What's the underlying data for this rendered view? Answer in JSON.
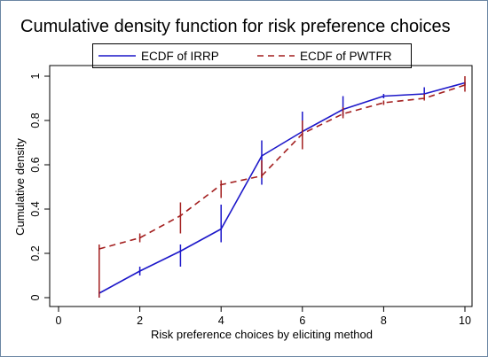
{
  "chart_data": {
    "type": "line",
    "title": "Cumulative density function for risk preference choices",
    "xlabel": "Risk preference choices by eliciting method",
    "ylabel": "Cumulative density",
    "xlim": [
      0,
      10
    ],
    "ylim": [
      0,
      1
    ],
    "xticks": [
      0,
      2,
      4,
      6,
      8,
      10
    ],
    "yticks": [
      0,
      0.2,
      0.4,
      0.6,
      0.8,
      1
    ],
    "ytick_labels": [
      "0",
      "0.2",
      "0.4",
      "0.6",
      "0.8",
      "1"
    ],
    "grid": false,
    "legend_position": "top",
    "series": [
      {
        "name": "ECDF of IRRP",
        "color": "#1c17c9",
        "style": "solid",
        "x": [
          1,
          2,
          3,
          4,
          5,
          6,
          7,
          8,
          9,
          10
        ],
        "y": [
          0.02,
          0.12,
          0.21,
          0.31,
          0.64,
          0.75,
          0.85,
          0.91,
          0.92,
          0.97
        ],
        "step_low": [
          0.0,
          0.1,
          0.14,
          0.25,
          0.51,
          0.73,
          0.82,
          0.9,
          0.91,
          0.96
        ],
        "step_high": [
          0.03,
          0.14,
          0.24,
          0.42,
          0.71,
          0.84,
          0.91,
          0.92,
          0.95,
          0.97
        ]
      },
      {
        "name": "ECDF of PWTFR",
        "color": "#a31f1f",
        "style": "dashed",
        "x": [
          1,
          2,
          3,
          4,
          5,
          6,
          7,
          8,
          9,
          10
        ],
        "y": [
          0.22,
          0.27,
          0.37,
          0.51,
          0.55,
          0.74,
          0.83,
          0.88,
          0.9,
          0.96
        ],
        "step_low": [
          0.0,
          0.25,
          0.29,
          0.45,
          0.54,
          0.67,
          0.81,
          0.87,
          0.89,
          0.93
        ],
        "step_high": [
          0.24,
          0.29,
          0.43,
          0.53,
          0.62,
          0.8,
          0.86,
          0.89,
          0.92,
          1.0
        ]
      }
    ]
  }
}
